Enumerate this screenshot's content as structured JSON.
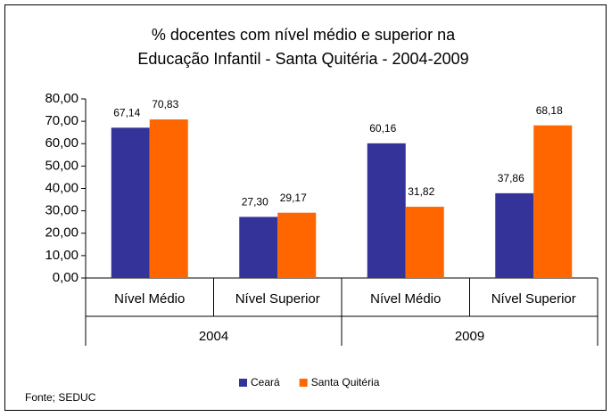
{
  "chart_data": {
    "type": "bar",
    "title": [
      "% docentes com nível médio e superior na",
      "Educação Infantil - Santa Quitéria - 2004-2009"
    ],
    "categories": [
      "Nível Médio",
      "Nível Superior",
      "Nível Médio",
      "Nível Superior"
    ],
    "groups": [
      "2004",
      "2009"
    ],
    "series": [
      {
        "name": "Ceará",
        "color": "#333399",
        "values": [
          67.14,
          27.3,
          60.16,
          37.86
        ],
        "value_labels": [
          "67,14",
          "27,30",
          "60,16",
          "37,86"
        ]
      },
      {
        "name": "Santa Quitéria",
        "color": "#ff6600",
        "values": [
          70.83,
          29.17,
          31.82,
          68.18
        ],
        "value_labels": [
          "70,83",
          "29,17",
          "31,82",
          "68,18"
        ]
      }
    ],
    "ylim": [
      0,
      80
    ],
    "yticks": [
      {
        "value": 0,
        "label": "0,00"
      },
      {
        "value": 10,
        "label": "10,00"
      },
      {
        "value": 20,
        "label": "20,00"
      },
      {
        "value": 30,
        "label": "30,00"
      },
      {
        "value": 40,
        "label": "40,00"
      },
      {
        "value": 50,
        "label": "50,00"
      },
      {
        "value": 60,
        "label": "60,00"
      },
      {
        "value": 70,
        "label": "70,00"
      },
      {
        "value": 80,
        "label": "80,00"
      }
    ],
    "grid": false,
    "legend": "bottom",
    "source": "Fonte; SEDUC"
  }
}
